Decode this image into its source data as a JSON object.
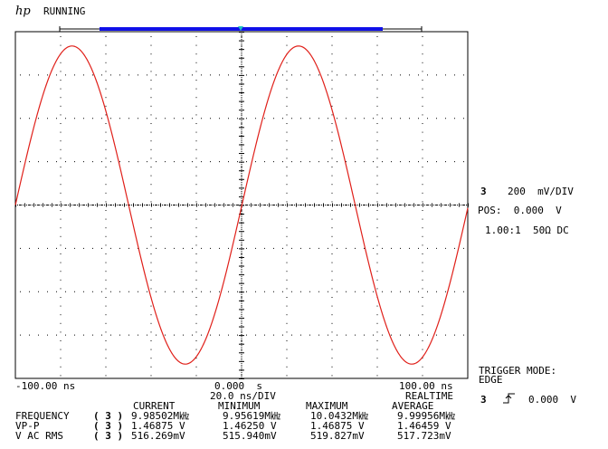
{
  "header": {
    "logo": "hp",
    "status": "RUNNING"
  },
  "timebase": {
    "left_time": "-100.00 ns",
    "center_time": "0.000  s",
    "right_time": "100.00 ns",
    "scale": "20.0 ns/DIV",
    "mode": "REALTIME"
  },
  "channel": {
    "number": "3",
    "scale": "200  mV/DIV",
    "position": "POS:  0.000  V",
    "coupling": "1.00:1  50Ω DC"
  },
  "trigger": {
    "mode_label": "TRIGGER MODE:",
    "mode_value": "EDGE",
    "channel": "3",
    "level": "0.000  V",
    "slope_icon": "rising-edge-icon"
  },
  "measurements": {
    "headers": [
      "CURRENT",
      "MINIMUM",
      "MAXIMUM",
      "AVERAGE"
    ],
    "rows": [
      {
        "name": "FREQUENCY",
        "channel": "( 3 )",
        "current": "9.98502M㎑",
        "minimum": "9.95619M㎑",
        "maximum": "10.0432M㎑",
        "average": "9.99956M㎑"
      },
      {
        "name": "VP-P",
        "channel": "( 3 )",
        "current": "1.46875 V",
        "minimum": "1.46250 V",
        "maximum": "1.46875 V",
        "average": "1.46459 V"
      },
      {
        "name": "V AC RMS",
        "channel": "( 3 )",
        "current": "516.269mV",
        "minimum": "515.940mV",
        "maximum": "519.827mV",
        "average": "517.723mV"
      }
    ]
  },
  "colors": {
    "trace": "#e0201a",
    "memory_bar": "#1010e8",
    "trigger_marker": "#20c0c0",
    "grid_dots": "#000000"
  },
  "chart_data": {
    "type": "line",
    "x_range_ns": [
      -100,
      100
    ],
    "y_range_mv": [
      -800,
      800
    ],
    "grid": true,
    "series": [
      {
        "frequency_mhz": 9.985,
        "amplitude_mv": 734,
        "phase_at_left_deg": 0
      }
    ]
  }
}
